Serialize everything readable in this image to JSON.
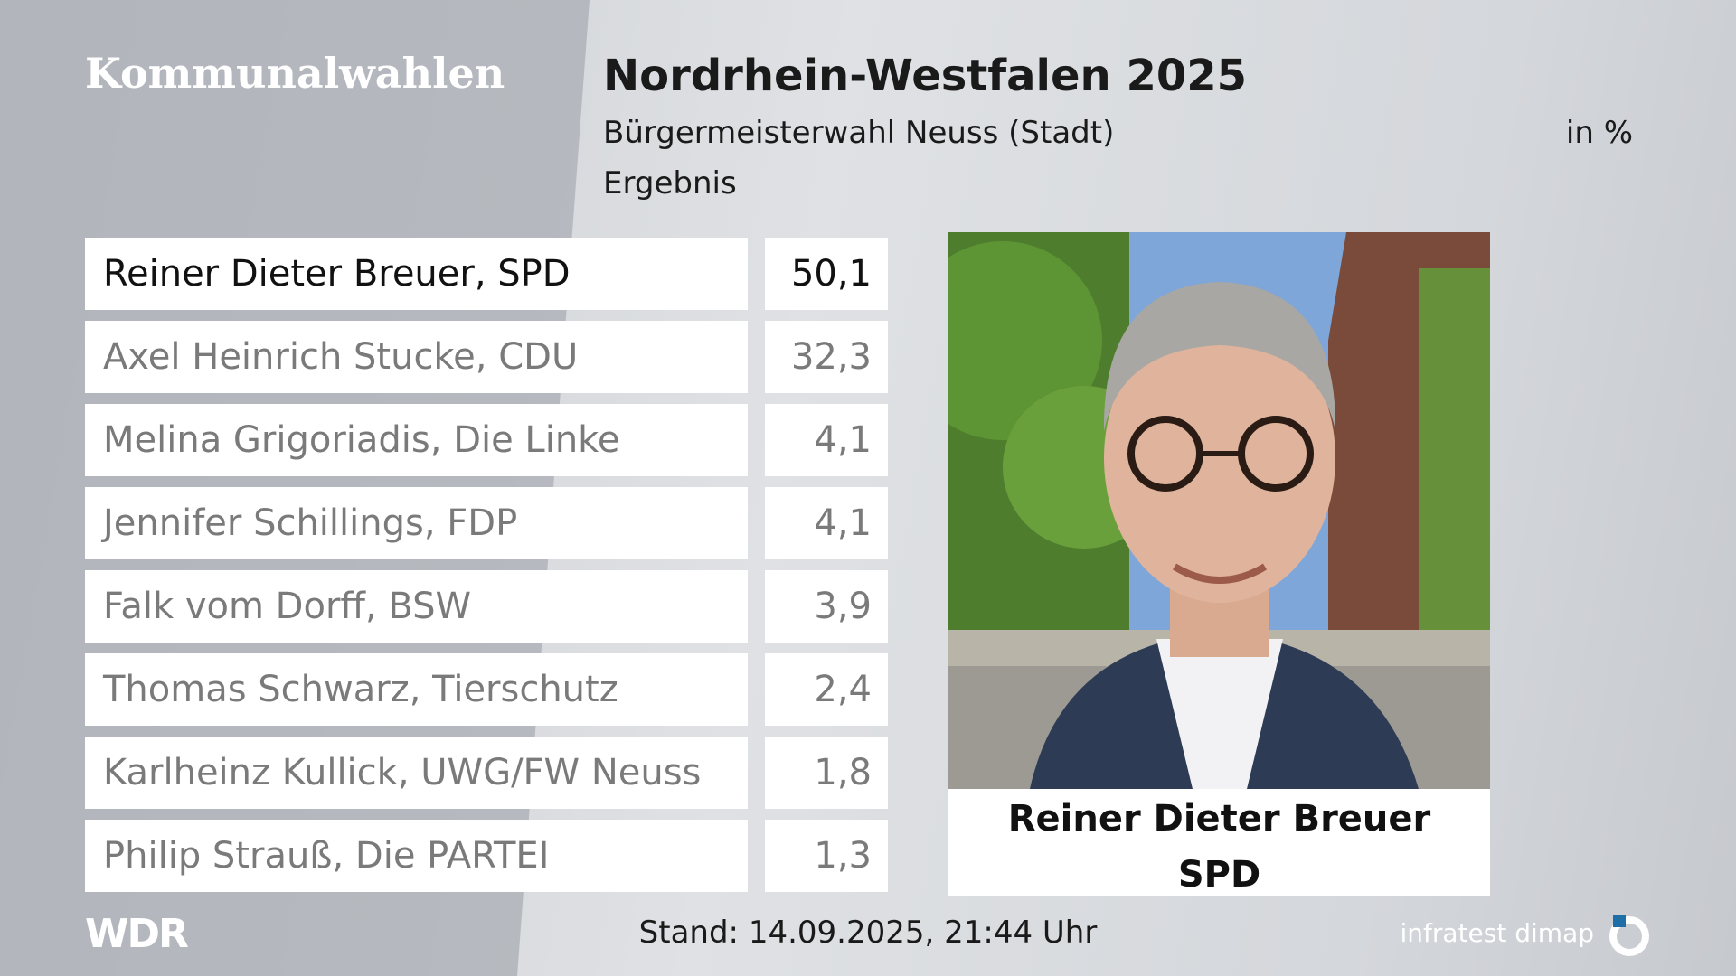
{
  "header": {
    "section": "Kommunalwahlen",
    "title": "Nordrhein-Westfalen 2025",
    "subtitle": "Bürgermeisterwahl Neuss (Stadt)",
    "unit": "in %",
    "label": "Ergebnis"
  },
  "table": {
    "rows": [
      [
        "Reiner Dieter Breuer, SPD",
        "50,1"
      ],
      [
        "Axel Heinrich Stucke, CDU",
        "32,3"
      ],
      [
        "Melina Grigoriadis, Die Linke",
        "4,1"
      ],
      [
        "Jennifer Schillings, FDP",
        "4,1"
      ],
      [
        "Falk vom Dorff, BSW",
        "3,9"
      ],
      [
        "Thomas Schwarz, Tierschutz",
        "2,4"
      ],
      [
        "Karlheinz Kullick, UWG/FW Neuss",
        "1,8"
      ],
      [
        "Philip Strauß, Die PARTEI",
        "1,3"
      ]
    ]
  },
  "portrait": {
    "name": "Reiner Dieter Breuer",
    "party": "SPD"
  },
  "footer": {
    "logo": "WDR",
    "timestamp": "Stand: 14.09.2025, 21:44 Uhr",
    "source": "infratest dimap"
  }
}
